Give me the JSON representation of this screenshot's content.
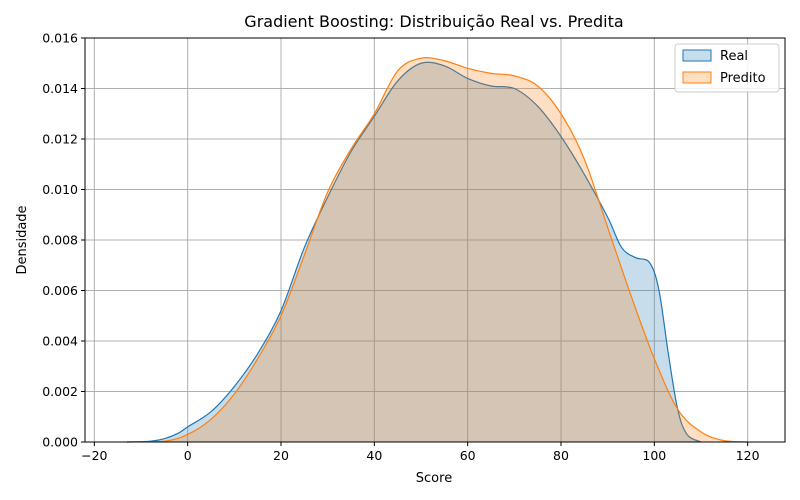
{
  "chart_data": {
    "type": "area",
    "title": "Gradient Boosting: Distribuição Real vs. Predita",
    "xlabel": "Score",
    "ylabel": "Densidade",
    "xlim": [
      -22,
      128
    ],
    "ylim": [
      0,
      0.016
    ],
    "xticks": [
      -20,
      0,
      20,
      40,
      60,
      80,
      100,
      120
    ],
    "xtick_labels": [
      "−20",
      "0",
      "20",
      "40",
      "60",
      "80",
      "100",
      "120"
    ],
    "yticks": [
      0,
      0.002,
      0.004,
      0.006,
      0.008,
      0.01,
      0.012,
      0.014,
      0.016
    ],
    "ytick_labels": [
      "0.000",
      "0.002",
      "0.004",
      "0.006",
      "0.008",
      "0.010",
      "0.012",
      "0.014",
      "0.016"
    ],
    "grid": true,
    "legend_position": "top-right",
    "series": [
      {
        "name": "Real",
        "color": "#1f77b4",
        "x": [
          -13,
          -8,
          -5,
          -2,
          0,
          5,
          10,
          15,
          20,
          25,
          30,
          35,
          40,
          45,
          50,
          55,
          60,
          65,
          70,
          75,
          80,
          85,
          90,
          93,
          96,
          99,
          101,
          103,
          105,
          107,
          110
        ],
        "y": [
          0,
          3e-05,
          0.00013,
          0.00035,
          0.0006,
          0.0012,
          0.0022,
          0.0035,
          0.0052,
          0.0077,
          0.0097,
          0.0115,
          0.0129,
          0.0143,
          0.015,
          0.0149,
          0.0144,
          0.0141,
          0.014,
          0.0133,
          0.0121,
          0.0106,
          0.0089,
          0.0077,
          0.0073,
          0.0071,
          0.006,
          0.0035,
          0.0013,
          0.0003,
          0
        ]
      },
      {
        "name": "Predito",
        "color": "#ff7f0e",
        "x": [
          -13,
          -5,
          0,
          5,
          10,
          15,
          20,
          25,
          30,
          35,
          40,
          45,
          50,
          55,
          60,
          65,
          70,
          75,
          80,
          85,
          90,
          95,
          100,
          105,
          110,
          115,
          120
        ],
        "y": [
          0,
          3e-05,
          0.0003,
          0.0009,
          0.0019,
          0.0033,
          0.005,
          0.0074,
          0.0099,
          0.0116,
          0.013,
          0.0147,
          0.0152,
          0.0151,
          0.0148,
          0.0146,
          0.0145,
          0.0141,
          0.013,
          0.0112,
          0.0085,
          0.0058,
          0.0033,
          0.0013,
          0.0004,
          5e-05,
          0
        ]
      }
    ]
  }
}
